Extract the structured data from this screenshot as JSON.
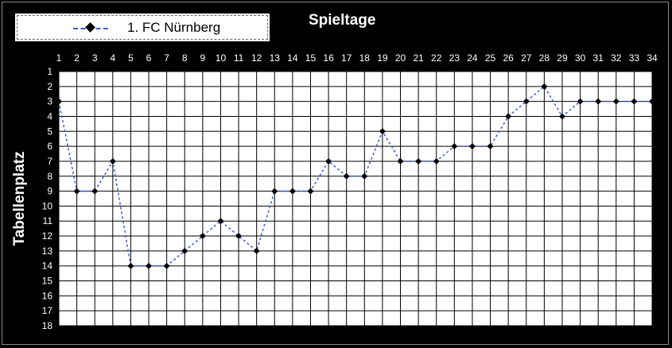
{
  "legend": {
    "series_label": "1. FC Nürnberg",
    "line_color": "#3a5bd6",
    "marker": "diamond-icon"
  },
  "chart_data": {
    "type": "line",
    "title": "Spieltage",
    "xlabel": "",
    "ylabel": "Tabellenplatz",
    "x": [
      1,
      2,
      3,
      4,
      5,
      6,
      7,
      8,
      9,
      10,
      11,
      12,
      13,
      14,
      15,
      16,
      17,
      18,
      19,
      20,
      21,
      22,
      23,
      24,
      25,
      26,
      27,
      28,
      29,
      30,
      31,
      32,
      33,
      34
    ],
    "xlim": [
      1,
      34
    ],
    "ylim": [
      1,
      18
    ],
    "y_inverted": true,
    "x_axis_position": "top",
    "grid": true,
    "legend_position": "top-left",
    "series": [
      {
        "name": "1. FC Nürnberg",
        "values": [
          3,
          9,
          9,
          7,
          14,
          14,
          14,
          13,
          12,
          11,
          12,
          13,
          9,
          9,
          9,
          7,
          8,
          8,
          5,
          7,
          7,
          7,
          6,
          6,
          6,
          4,
          3,
          2,
          4,
          3,
          3,
          3,
          3,
          3
        ]
      }
    ]
  }
}
